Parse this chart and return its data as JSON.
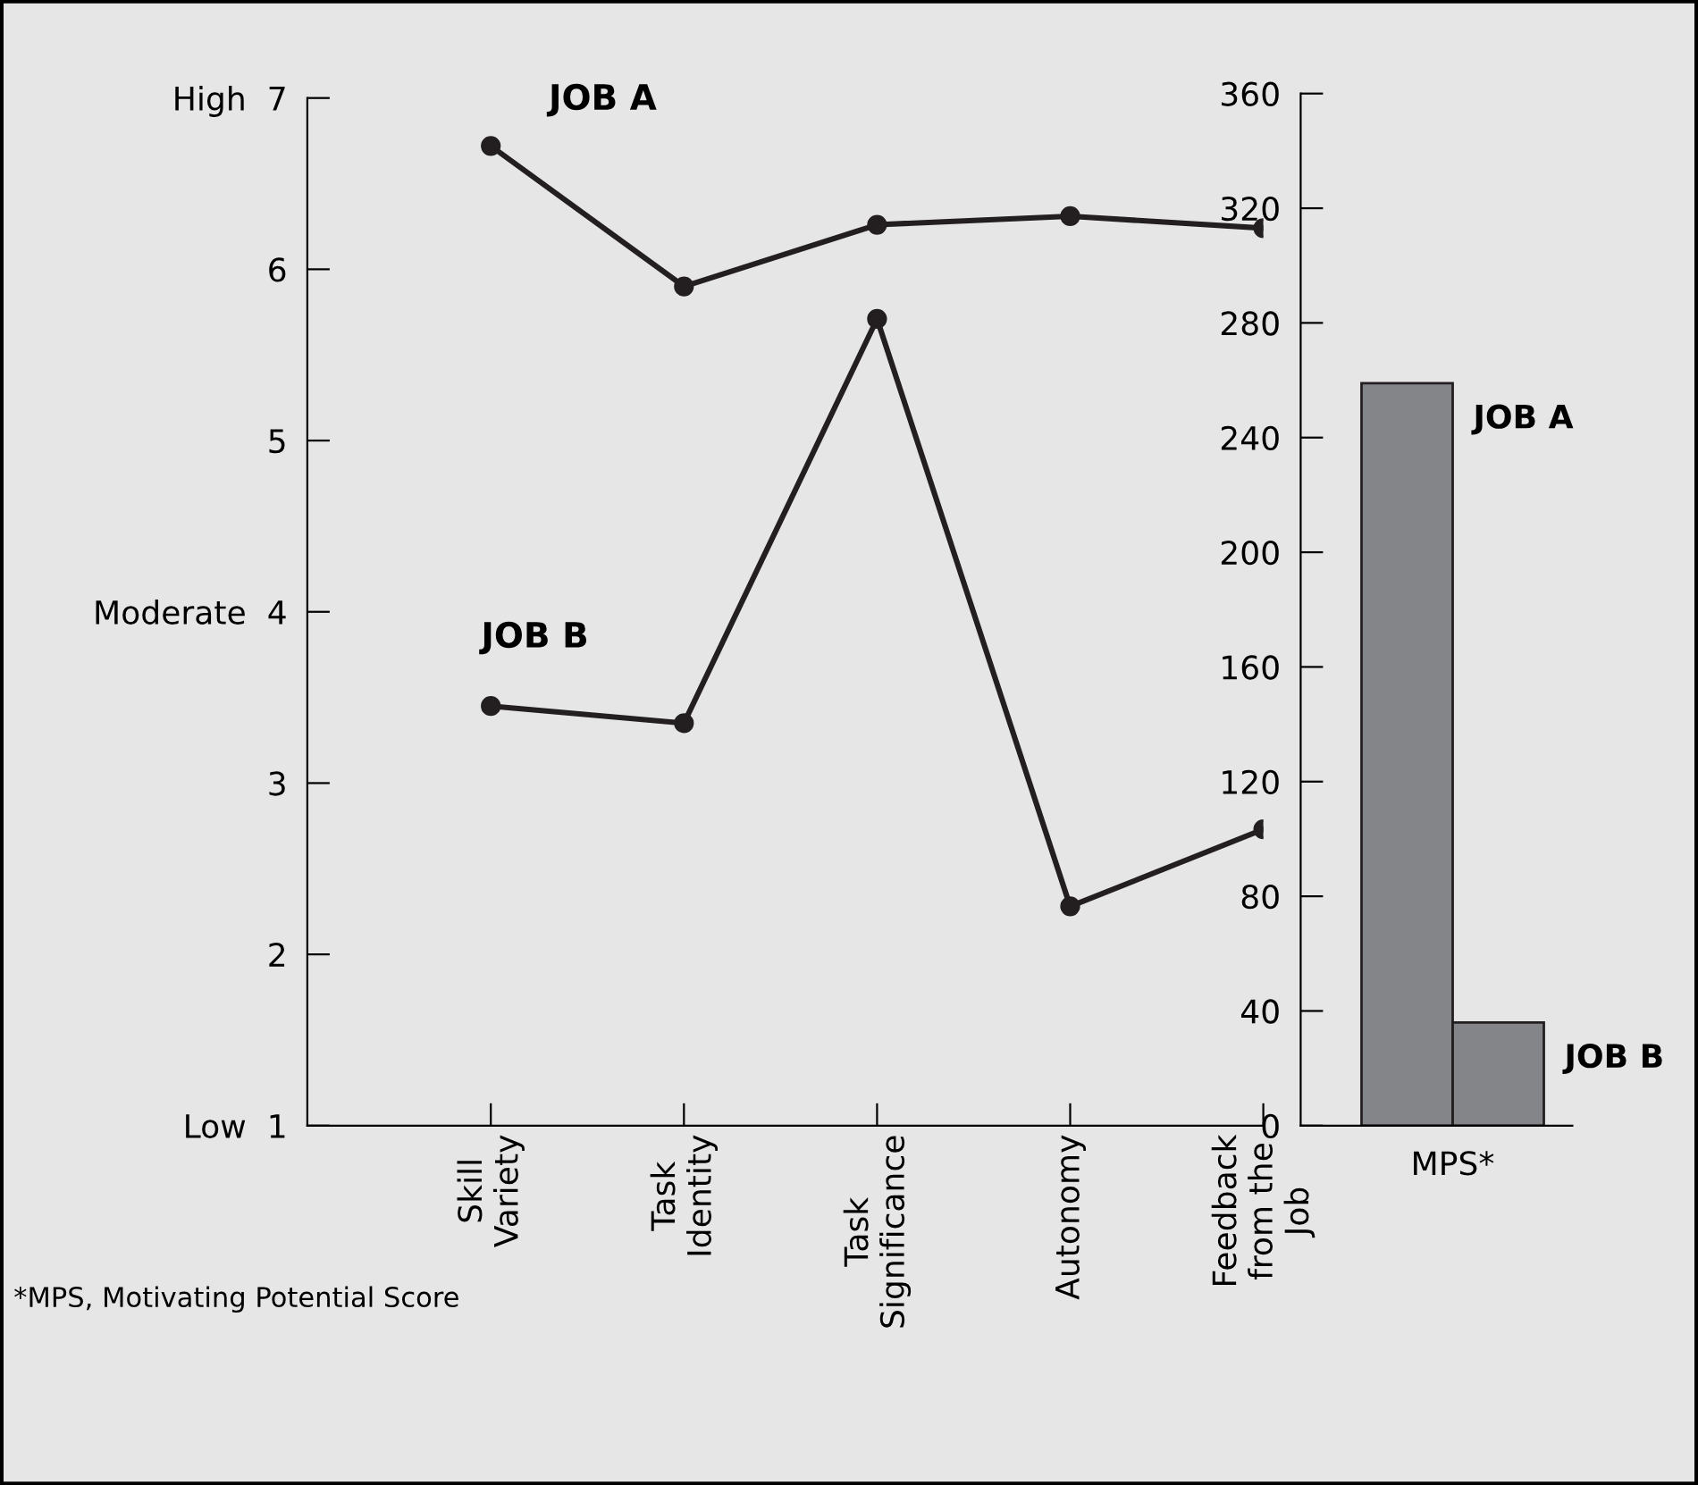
{
  "chart_data": [
    {
      "type": "line",
      "categories": [
        "Skill\nVariety",
        "Task\nIdentity",
        "Task\nSignificance",
        "Autonomy",
        "Feedback\nfrom the\nJob"
      ],
      "series": [
        {
          "name": "JOB A",
          "color": "#231f20",
          "values": [
            6.72,
            5.9,
            6.26,
            6.31,
            6.24
          ]
        },
        {
          "name": "JOB B",
          "color": "#231f20",
          "values": [
            3.45,
            3.35,
            5.71,
            2.28,
            2.73
          ]
        }
      ],
      "ylim": [
        1,
        7
      ],
      "yticks": [
        {
          "value": 1,
          "label": "Low  1"
        },
        2,
        3,
        {
          "value": 4,
          "label": "Moderate  4"
        },
        5,
        6,
        {
          "value": 7,
          "label": "High  7"
        }
      ],
      "marker": "circle",
      "line_style": "solid",
      "grid": false,
      "legend": false
    },
    {
      "type": "bar",
      "categories": [
        "MPS*"
      ],
      "series": [
        {
          "name": "JOB A",
          "color": "#848589",
          "values": [
            259
          ]
        },
        {
          "name": "JOB B",
          "color": "#848589",
          "values": [
            36
          ]
        }
      ],
      "ylim": [
        0,
        360
      ],
      "yticks": [
        0,
        40,
        80,
        120,
        160,
        200,
        240,
        280,
        320,
        360
      ],
      "grid": false,
      "legend": false,
      "annotations": [
        "*MPS, Motivating Potential Score"
      ]
    }
  ]
}
